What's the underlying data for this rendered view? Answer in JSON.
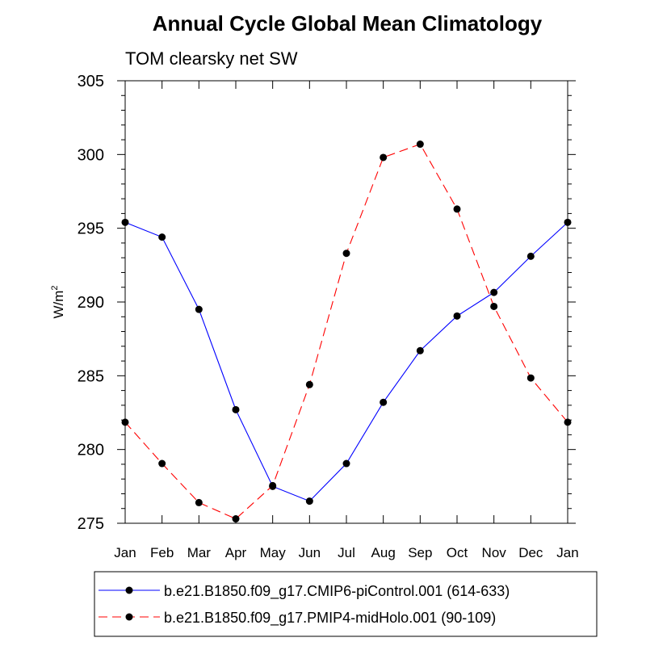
{
  "chart_data": {
    "type": "line",
    "title": "Annual Cycle Global Mean Climatology",
    "subtitle": "TOM clearsky net SW",
    "xlabel": "",
    "ylabel": "W/m",
    "ylabel_superscript": "2",
    "ylim": [
      275,
      305
    ],
    "yticks": [
      275,
      280,
      285,
      290,
      295,
      300,
      305
    ],
    "categories": [
      "Jan",
      "Feb",
      "Mar",
      "Apr",
      "May",
      "Jun",
      "Jul",
      "Aug",
      "Sep",
      "Oct",
      "Nov",
      "Dec",
      "Jan"
    ],
    "grid": false,
    "legend_position": "bottom",
    "series": [
      {
        "name": "b.e21.B1850.f09_g17.CMIP6-piControl.001 (614-633)",
        "color": "#0000ff",
        "dash": "solid",
        "marker": "circle",
        "values": [
          295.4,
          294.4,
          289.5,
          282.7,
          277.5,
          276.5,
          279.05,
          283.2,
          286.7,
          289.05,
          290.65,
          293.1,
          295.4
        ]
      },
      {
        "name": "b.e21.B1850.f09_g17.PMIP4-midHolo.001 (90-109)",
        "color": "#ff0000",
        "dash": "dashed",
        "marker": "circle",
        "values": [
          281.85,
          279.05,
          276.4,
          275.3,
          277.55,
          284.4,
          293.3,
          299.8,
          300.7,
          296.3,
          289.7,
          284.85,
          281.85
        ]
      }
    ]
  }
}
